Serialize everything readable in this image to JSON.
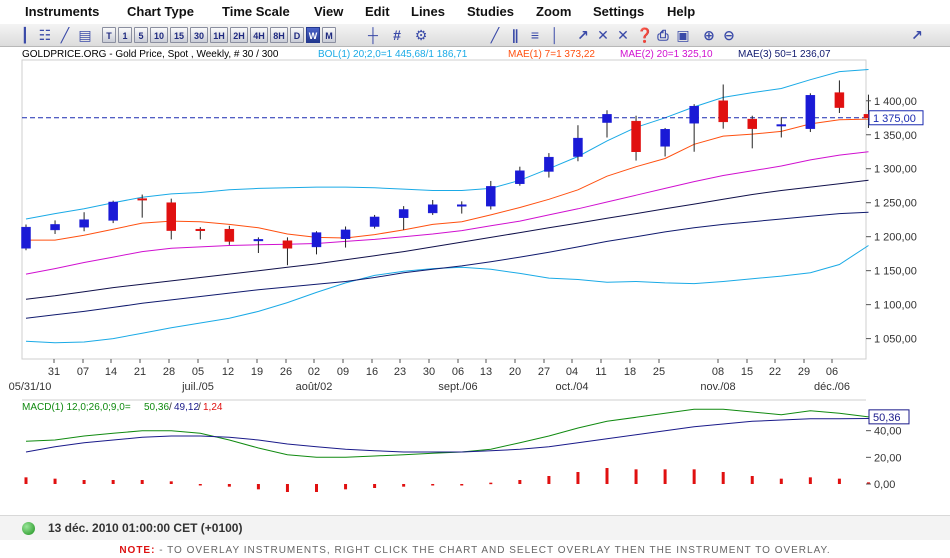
{
  "menubar": {
    "items": [
      "Instruments",
      "Chart Type",
      "Time Scale",
      "View",
      "Edit",
      "Lines",
      "Studies",
      "Zoom",
      "Settings",
      "Help"
    ]
  },
  "toolbar": {
    "timescales": [
      "T",
      "1",
      "5",
      "10",
      "15",
      "30",
      "1H",
      "2H",
      "4H",
      "8H",
      "D",
      "W",
      "M"
    ],
    "selected": "W"
  },
  "chart_header": {
    "instrument": "GOLDPRICE.ORG - Gold Price, Spot , Weekly, # 30 / 300",
    "bol": "BOL(1) 20;2,0=1 445,68/1 186,71",
    "mae1": "MAE(1) 7=1 373,22",
    "mae2": "MAE(2) 20=1 325,10",
    "mae3": "MAE(3) 50=1 236,07"
  },
  "macd_header": {
    "label": "MACD(1) 12,0;26,0;9,0=",
    "macd": "50,36",
    "signal": "49,12",
    "hist": "1,24"
  },
  "status": {
    "datetime": "13 déc. 2010 01:00:00  CET (+0100)"
  },
  "note": {
    "label": "NOTE:",
    "text": " - TO OVERLAY INSTRUMENTS, RIGHT CLICK THE CHART AND SELECT OVERLAY THEN THE INSTRUMENT TO OVERLAY."
  },
  "colors": {
    "up": "#1a1ad6",
    "down": "#e01010",
    "bollinger": "#1aaae6",
    "mae1": "#ff5010",
    "mae2": "#d010d0",
    "mae3": "#101a6e",
    "bol_mid": "#10104a",
    "macd": "#108a10",
    "signal": "#1a1a8a",
    "hist": "#e01010",
    "last_price_line": "#1a2ab0"
  },
  "chart_data": [
    {
      "type": "candlestick",
      "title": "GOLDPRICE.ORG - Gold Price, Spot , Weekly",
      "x_ticks": [
        "31",
        "07",
        "14",
        "21",
        "28",
        "05",
        "12",
        "19",
        "26",
        "02",
        "09",
        "16",
        "23",
        "30",
        "06",
        "13",
        "20",
        "27",
        "04",
        "11",
        "18",
        "25",
        "08",
        "15",
        "22",
        "29",
        "06"
      ],
      "x_month_labels": [
        {
          "label": "05/31/10",
          "at": 0
        },
        {
          "label": "juil./05",
          "at": 5
        },
        {
          "label": "août/02",
          "at": 9
        },
        {
          "label": "sept./06",
          "at": 14
        },
        {
          "label": "oct./04",
          "at": 18
        },
        {
          "label": "nov./08",
          "at": 22
        },
        {
          "label": "déc./06",
          "at": 26
        }
      ],
      "y_ticks": [
        "1 400,00",
        "1 350,00",
        "1 300,00",
        "1 250,00",
        "1 200,00",
        "1 150,00",
        "1 100,00",
        "1 050,00"
      ],
      "ylim": [
        1020,
        1460
      ],
      "last_price": "1 375,00",
      "last_price_value": 1375,
      "candles": [
        {
          "o": 1183,
          "h": 1218,
          "l": 1180,
          "c": 1214
        },
        {
          "o": 1210,
          "h": 1224,
          "l": 1204,
          "c": 1218
        },
        {
          "o": 1214,
          "h": 1236,
          "l": 1208,
          "c": 1225
        },
        {
          "o": 1224,
          "h": 1253,
          "l": 1220,
          "c": 1251
        },
        {
          "o": 1256,
          "h": 1262,
          "l": 1228,
          "c": 1255
        },
        {
          "o": 1250,
          "h": 1256,
          "l": 1196,
          "c": 1209
        },
        {
          "o": 1211,
          "h": 1214,
          "l": 1196,
          "c": 1210
        },
        {
          "o": 1211,
          "h": 1216,
          "l": 1188,
          "c": 1193
        },
        {
          "o": 1196,
          "h": 1199,
          "l": 1176,
          "c": 1196
        },
        {
          "o": 1194,
          "h": 1199,
          "l": 1158,
          "c": 1183
        },
        {
          "o": 1185,
          "h": 1208,
          "l": 1174,
          "c": 1206
        },
        {
          "o": 1197,
          "h": 1215,
          "l": 1184,
          "c": 1210
        },
        {
          "o": 1215,
          "h": 1232,
          "l": 1212,
          "c": 1229
        },
        {
          "o": 1228,
          "h": 1245,
          "l": 1210,
          "c": 1240
        },
        {
          "o": 1235,
          "h": 1254,
          "l": 1232,
          "c": 1247
        },
        {
          "o": 1247,
          "h": 1252,
          "l": 1234,
          "c": 1247
        },
        {
          "o": 1245,
          "h": 1282,
          "l": 1240,
          "c": 1274
        },
        {
          "o": 1278,
          "h": 1303,
          "l": 1275,
          "c": 1297
        },
        {
          "o": 1296,
          "h": 1323,
          "l": 1287,
          "c": 1317
        },
        {
          "o": 1318,
          "h": 1364,
          "l": 1311,
          "c": 1345
        },
        {
          "o": 1368,
          "h": 1386,
          "l": 1346,
          "c": 1380
        },
        {
          "o": 1370,
          "h": 1378,
          "l": 1312,
          "c": 1325
        },
        {
          "o": 1333,
          "h": 1360,
          "l": 1318,
          "c": 1358
        },
        {
          "o": 1367,
          "h": 1395,
          "l": 1325,
          "c": 1392
        },
        {
          "o": 1400,
          "h": 1424,
          "l": 1359,
          "c": 1369
        },
        {
          "o": 1373,
          "h": 1378,
          "l": 1330,
          "c": 1359
        },
        {
          "o": 1363,
          "h": 1376,
          "l": 1346,
          "c": 1365
        },
        {
          "o": 1359,
          "h": 1411,
          "l": 1354,
          "c": 1408
        },
        {
          "o": 1412,
          "h": 1430,
          "l": 1382,
          "c": 1390
        },
        {
          "o": 1380,
          "h": 1409,
          "l": 1360,
          "c": 1375
        }
      ],
      "series": [
        {
          "name": "BOL(1) 20;2,0 upper",
          "values": [
            1226,
            1234,
            1241,
            1250,
            1258,
            1263,
            1265,
            1269,
            1271,
            1272,
            1273,
            1273,
            1272,
            1270,
            1268,
            1268,
            1271,
            1283,
            1300,
            1318,
            1341,
            1361,
            1375,
            1391,
            1405,
            1412,
            1418,
            1431,
            1443,
            1446
          ]
        },
        {
          "name": "BOL(1) 20;2,0 middle",
          "values": [
            1108,
            1113,
            1119,
            1125,
            1130,
            1135,
            1140,
            1145,
            1150,
            1155,
            1160,
            1166,
            1172,
            1178,
            1185,
            1192,
            1199,
            1206,
            1213,
            1220,
            1227,
            1234,
            1241,
            1248,
            1255,
            1262,
            1268,
            1273,
            1278,
            1283
          ]
        },
        {
          "name": "BOL(1) 20;2,0 lower",
          "values": [
            1046,
            1044,
            1045,
            1050,
            1058,
            1066,
            1073,
            1080,
            1090,
            1103,
            1118,
            1132,
            1143,
            1149,
            1153,
            1155,
            1152,
            1146,
            1139,
            1137,
            1133,
            1134,
            1132,
            1131,
            1134,
            1138,
            1142,
            1147,
            1159,
            1187
          ]
        },
        {
          "name": "MAE(1) 7",
          "values": [
            1195,
            1195,
            1202,
            1211,
            1220,
            1223,
            1222,
            1218,
            1213,
            1204,
            1199,
            1198,
            1203,
            1210,
            1218,
            1222,
            1232,
            1243,
            1255,
            1269,
            1289,
            1303,
            1315,
            1336,
            1348,
            1351,
            1355,
            1366,
            1372,
            1373
          ]
        },
        {
          "name": "MAE(2) 20",
          "values": [
            1145,
            1153,
            1162,
            1170,
            1178,
            1183,
            1185,
            1187,
            1188,
            1189,
            1190,
            1193,
            1196,
            1200,
            1204,
            1209,
            1216,
            1223,
            1232,
            1241,
            1251,
            1261,
            1271,
            1281,
            1290,
            1297,
            1304,
            1313,
            1320,
            1325
          ]
        },
        {
          "name": "MAE(3) 50",
          "values": [
            1080,
            1085,
            1090,
            1096,
            1102,
            1107,
            1112,
            1117,
            1122,
            1126,
            1130,
            1134,
            1140,
            1147,
            1152,
            1157,
            1163,
            1170,
            1177,
            1185,
            1193,
            1200,
            1207,
            1213,
            1218,
            1222,
            1226,
            1230,
            1234,
            1236
          ]
        }
      ]
    },
    {
      "type": "line",
      "title": "MACD(1) 12,0;26,0;9,0",
      "y_ticks": [
        "40,00",
        "20,00",
        "0,00"
      ],
      "ylim": [
        -15,
        60
      ],
      "macd": [
        32,
        33,
        36,
        38,
        40,
        40,
        38,
        33,
        27,
        22,
        20,
        20,
        21,
        22,
        23,
        24,
        26,
        31,
        36,
        42,
        47,
        50,
        53,
        56,
        56,
        54,
        52,
        55,
        53,
        50.36
      ],
      "signal": [
        24,
        28,
        31,
        33,
        35,
        36,
        36,
        35,
        33,
        30,
        28,
        26,
        25,
        24,
        24,
        24,
        25,
        26,
        28,
        31,
        34,
        37,
        40,
        43,
        45,
        47,
        48,
        49,
        49,
        49.12
      ],
      "hist": [
        5,
        4,
        3,
        3,
        3,
        2,
        0,
        -2,
        -4,
        -6,
        -6,
        -4,
        -3,
        -2,
        -1,
        0,
        1,
        3,
        6,
        9,
        12,
        11,
        11,
        11,
        9,
        6,
        4,
        5,
        4,
        1.24
      ]
    }
  ]
}
